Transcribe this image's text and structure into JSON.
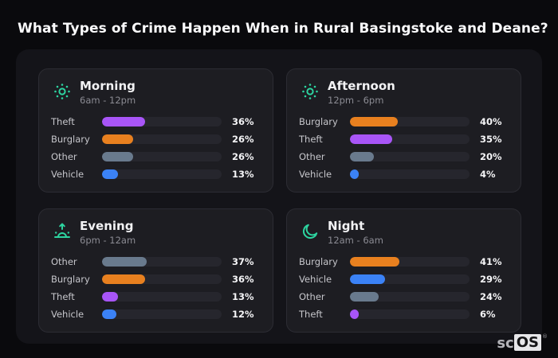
{
  "page": {
    "title": "What Types of Crime Happen When in Rural Basingstoke and Deane?"
  },
  "logo": {
    "prefix": "sc",
    "suffix": "OS",
    "registered": "®"
  },
  "colors": {
    "theft": "#a855f7",
    "burglary": "#e8801f",
    "other": "#697a8d",
    "vehicle": "#3b82f6",
    "accent_teal": "#2dd4a0",
    "page_bg": "#0a0a0d",
    "panel_bg": "#141419",
    "card_bg": "#1d1d22",
    "track_bg": "#26262d"
  },
  "chart_data": [
    {
      "type": "bar",
      "title": "Morning",
      "subtitle": "6am - 12pm",
      "icon": "sun-icon",
      "unit": "%",
      "categories": [
        "Theft",
        "Burglary",
        "Other",
        "Vehicle"
      ],
      "values": [
        36,
        26,
        26,
        13
      ],
      "xlim": [
        0,
        100
      ]
    },
    {
      "type": "bar",
      "title": "Afternoon",
      "subtitle": "12pm - 6pm",
      "icon": "sun-icon",
      "unit": "%",
      "categories": [
        "Burglary",
        "Theft",
        "Other",
        "Vehicle"
      ],
      "values": [
        40,
        35,
        20,
        4
      ],
      "xlim": [
        0,
        100
      ]
    },
    {
      "type": "bar",
      "title": "Evening",
      "subtitle": "6pm - 12am",
      "icon": "sunrise-icon",
      "unit": "%",
      "categories": [
        "Other",
        "Burglary",
        "Theft",
        "Vehicle"
      ],
      "values": [
        37,
        36,
        13,
        12
      ],
      "xlim": [
        0,
        100
      ]
    },
    {
      "type": "bar",
      "title": "Night",
      "subtitle": "12am - 6am",
      "icon": "moon-icon",
      "unit": "%",
      "categories": [
        "Burglary",
        "Vehicle",
        "Other",
        "Theft"
      ],
      "values": [
        41,
        29,
        24,
        6
      ],
      "xlim": [
        0,
        100
      ]
    }
  ]
}
